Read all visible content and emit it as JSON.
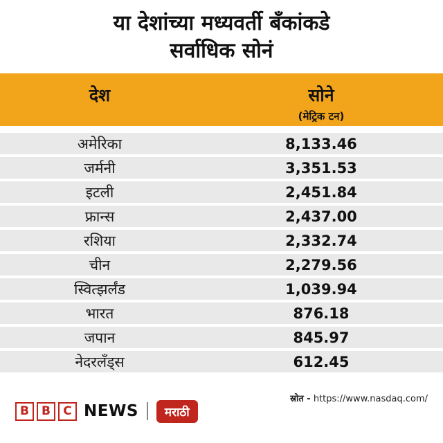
{
  "title": {
    "line1": "या देशांच्या मध्यवर्ती बँकांकडे",
    "line2": "सर्वाधिक सोनं"
  },
  "table": {
    "col_country": "देश",
    "col_gold": "सोने",
    "col_gold_unit": "(मेट्रिक टन)",
    "rows": [
      {
        "country": "अमेरिका",
        "value": "8,133.46"
      },
      {
        "country": "जर्मनी",
        "value": "3,351.53"
      },
      {
        "country": "इटली",
        "value": "2,451.84"
      },
      {
        "country": "फ्रान्स",
        "value": "2,437.00"
      },
      {
        "country": "रशिया",
        "value": "2,332.74"
      },
      {
        "country": "चीन",
        "value": "2,279.56"
      },
      {
        "country": "स्वित्झर्लंड",
        "value": "1,039.94"
      },
      {
        "country": "भारत",
        "value": "876.18"
      },
      {
        "country": "जपान",
        "value": "845.97"
      },
      {
        "country": "नेदरलँड्स",
        "value": "612.45"
      }
    ]
  },
  "footer": {
    "source_label": "स्रोत -",
    "source_url": "https://www.nasdaq.com/",
    "brand": {
      "block1": "B",
      "block2": "B",
      "block3": "C",
      "news": "NEWS",
      "lang": "मराठी"
    }
  },
  "colors": {
    "header_bar": "#F2A51B",
    "row_background": "#E9E9E9",
    "brand_red": "#C0251E",
    "text": "#111111"
  },
  "chart_data": {
    "type": "table",
    "title": "या देशांच्या मध्यवर्ती बँकांकडे सर्वाधिक सोनं",
    "columns": [
      "देश",
      "सोने (मेट्रिक टन)"
    ],
    "categories": [
      "अमेरिका",
      "जर्मनी",
      "इटली",
      "फ्रान्स",
      "रशिया",
      "चीन",
      "स्वित्झर्लंड",
      "भारत",
      "जपान",
      "नेदरलँड्स"
    ],
    "values": [
      8133.46,
      3351.53,
      2451.84,
      2437.0,
      2332.74,
      2279.56,
      1039.94,
      876.18,
      845.97,
      612.45
    ],
    "source": "स्रोत - https://www.nasdaq.com/"
  }
}
